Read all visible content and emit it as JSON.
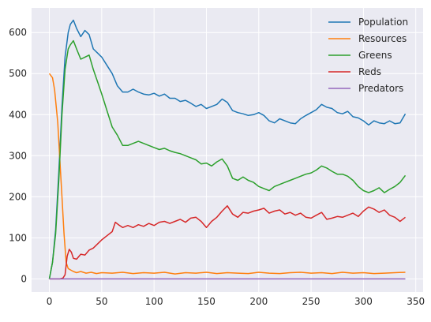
{
  "chart_data": {
    "type": "line",
    "title": "",
    "xlabel": "",
    "ylabel": "",
    "xlim": [
      -17,
      357
    ],
    "ylim": [
      -32,
      660
    ],
    "xticks": [
      0,
      50,
      100,
      150,
      200,
      250,
      300,
      350
    ],
    "yticks": [
      0,
      100,
      200,
      300,
      400,
      500,
      600
    ],
    "grid": true,
    "legend": "top-right",
    "background": "#eaeaf2",
    "series": [
      {
        "name": "Population",
        "color": "#1f77b4",
        "x": [
          0,
          3,
          6,
          9,
          12,
          15,
          18,
          20,
          23,
          26,
          30,
          34,
          38,
          42,
          46,
          50,
          55,
          60,
          65,
          70,
          75,
          80,
          85,
          90,
          95,
          100,
          105,
          110,
          115,
          120,
          125,
          130,
          135,
          140,
          145,
          150,
          155,
          160,
          165,
          170,
          175,
          180,
          185,
          190,
          195,
          200,
          205,
          210,
          215,
          220,
          225,
          230,
          235,
          240,
          245,
          250,
          255,
          260,
          265,
          270,
          275,
          280,
          285,
          290,
          295,
          300,
          305,
          310,
          315,
          320,
          325,
          330,
          335,
          340
        ],
        "y": [
          0,
          40,
          120,
          260,
          420,
          540,
          600,
          620,
          630,
          610,
          590,
          605,
          595,
          560,
          550,
          540,
          520,
          500,
          470,
          455,
          455,
          462,
          455,
          450,
          448,
          452,
          445,
          450,
          440,
          440,
          432,
          435,
          428,
          420,
          425,
          415,
          420,
          425,
          438,
          430,
          410,
          405,
          402,
          398,
          400,
          405,
          398,
          385,
          380,
          390,
          385,
          380,
          378,
          390,
          398,
          405,
          412,
          425,
          418,
          415,
          405,
          402,
          408,
          395,
          392,
          385,
          375,
          385,
          380,
          378,
          385,
          378,
          380,
          402
        ]
      },
      {
        "name": "Resources",
        "color": "#ff7f0e",
        "x": [
          0,
          3,
          5,
          8,
          10,
          12,
          14,
          16,
          18,
          20,
          23,
          26,
          30,
          35,
          40,
          45,
          50,
          60,
          70,
          80,
          90,
          100,
          110,
          120,
          130,
          140,
          150,
          160,
          170,
          180,
          190,
          200,
          210,
          220,
          230,
          240,
          250,
          260,
          270,
          280,
          290,
          300,
          310,
          320,
          330,
          340
        ],
        "y": [
          500,
          490,
          460,
          380,
          290,
          200,
          110,
          40,
          25,
          22,
          18,
          15,
          18,
          14,
          16,
          13,
          15,
          14,
          16,
          13,
          15,
          14,
          16,
          12,
          15,
          14,
          16,
          13,
          15,
          14,
          13,
          16,
          14,
          13,
          15,
          16,
          14,
          15,
          13,
          16,
          14,
          15,
          13,
          14,
          15,
          16
        ]
      },
      {
        "name": "Greens",
        "color": "#2ca02c",
        "x": [
          0,
          3,
          6,
          9,
          12,
          15,
          18,
          20,
          23,
          26,
          30,
          34,
          38,
          42,
          46,
          50,
          55,
          60,
          65,
          70,
          75,
          80,
          85,
          90,
          95,
          100,
          105,
          110,
          115,
          120,
          125,
          130,
          135,
          140,
          145,
          150,
          155,
          160,
          165,
          170,
          175,
          180,
          185,
          190,
          195,
          200,
          205,
          210,
          215,
          220,
          225,
          230,
          235,
          240,
          245,
          250,
          255,
          260,
          265,
          270,
          275,
          280,
          285,
          290,
          295,
          300,
          305,
          310,
          315,
          320,
          325,
          330,
          335,
          340
        ],
        "y": [
          0,
          40,
          110,
          240,
          400,
          510,
          560,
          570,
          580,
          560,
          535,
          540,
          545,
          510,
          480,
          450,
          410,
          370,
          350,
          325,
          325,
          330,
          335,
          330,
          325,
          320,
          315,
          318,
          312,
          308,
          305,
          300,
          295,
          290,
          280,
          282,
          275,
          285,
          292,
          275,
          245,
          240,
          248,
          240,
          235,
          225,
          220,
          215,
          225,
          230,
          235,
          240,
          245,
          250,
          255,
          258,
          265,
          275,
          270,
          262,
          255,
          255,
          250,
          240,
          225,
          215,
          210,
          215,
          222,
          210,
          218,
          225,
          235,
          252
        ]
      },
      {
        "name": "Reds",
        "color": "#d62728",
        "x": [
          0,
          5,
          10,
          13,
          15,
          17,
          19,
          21,
          23,
          26,
          30,
          34,
          38,
          42,
          46,
          50,
          55,
          60,
          63,
          66,
          70,
          75,
          80,
          85,
          90,
          95,
          100,
          105,
          110,
          115,
          120,
          125,
          130,
          135,
          140,
          145,
          150,
          155,
          160,
          165,
          170,
          175,
          180,
          185,
          190,
          195,
          200,
          205,
          210,
          215,
          220,
          225,
          230,
          235,
          240,
          245,
          250,
          255,
          260,
          265,
          270,
          275,
          280,
          285,
          290,
          295,
          300,
          305,
          310,
          315,
          320,
          325,
          330,
          335,
          340
        ],
        "y": [
          0,
          0,
          0,
          2,
          10,
          55,
          72,
          65,
          50,
          48,
          60,
          58,
          70,
          75,
          85,
          95,
          105,
          115,
          138,
          132,
          125,
          130,
          125,
          132,
          128,
          135,
          130,
          138,
          140,
          135,
          140,
          145,
          138,
          148,
          150,
          140,
          125,
          140,
          150,
          165,
          178,
          158,
          150,
          162,
          160,
          165,
          168,
          172,
          160,
          165,
          168,
          158,
          162,
          155,
          160,
          150,
          148,
          155,
          162,
          145,
          148,
          152,
          150,
          155,
          160,
          152,
          165,
          175,
          170,
          162,
          168,
          155,
          150,
          140,
          150
        ]
      },
      {
        "name": "Predators",
        "color": "#9467bd",
        "x": [
          0,
          340
        ],
        "y": [
          0,
          0
        ]
      }
    ]
  }
}
